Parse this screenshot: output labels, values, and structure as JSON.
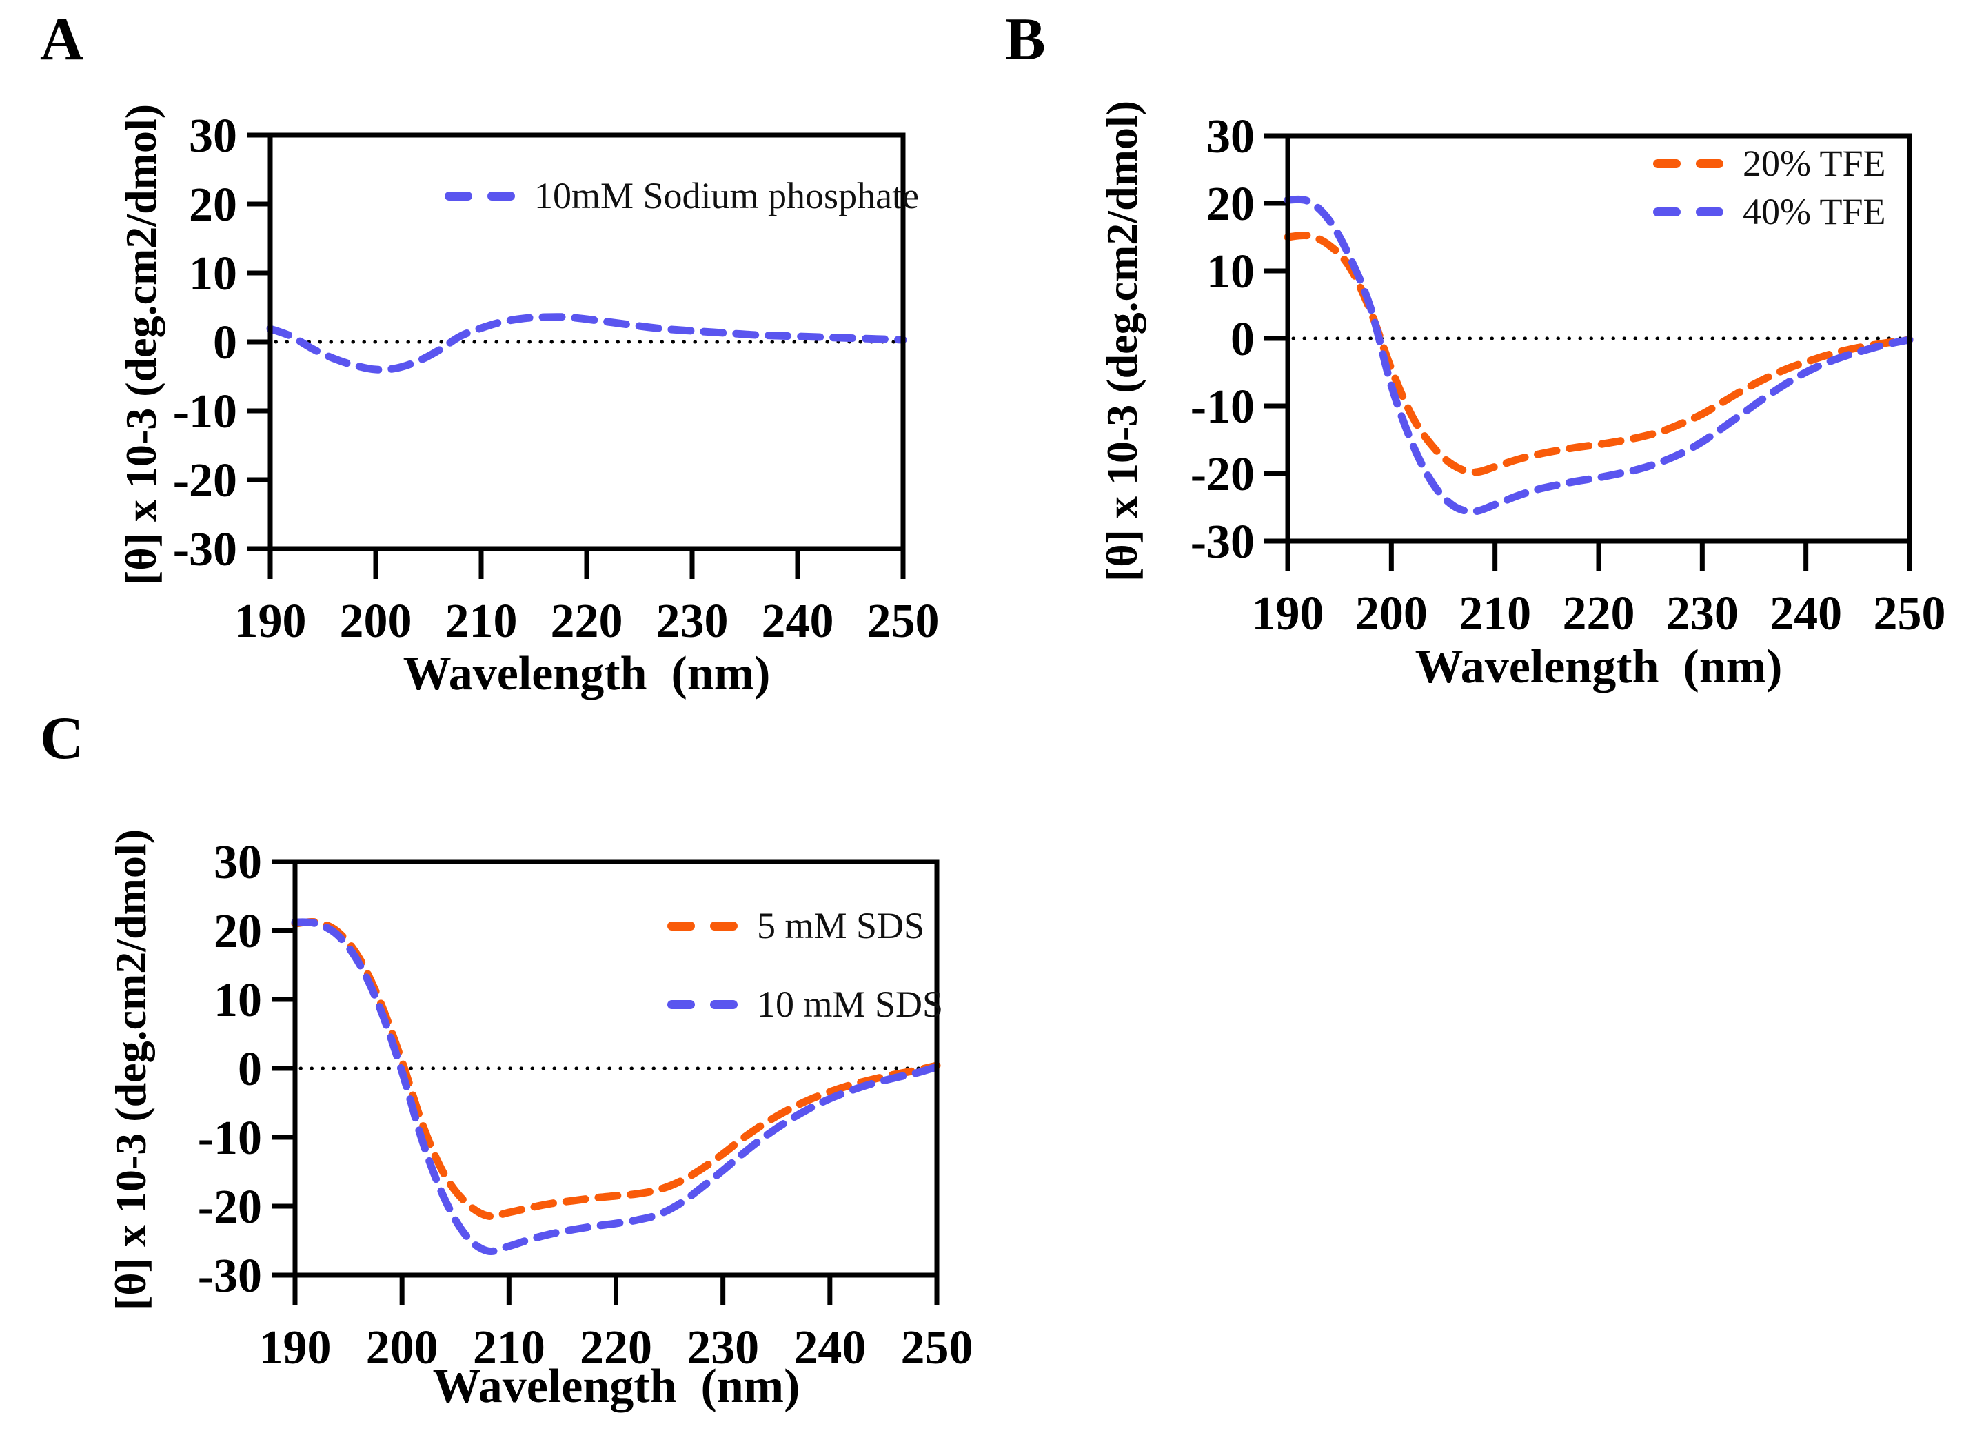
{
  "chart_data": [
    {
      "panel_label": "A",
      "type": "line",
      "xlabel": "Wavelength  (nm)",
      "ylabel": "[θ] x 10-3 (deg.cm2/dmol)",
      "xlim": [
        190,
        250
      ],
      "ylim": [
        -30,
        30
      ],
      "xticks": [
        190,
        200,
        210,
        220,
        230,
        240,
        250
      ],
      "yticks": [
        30,
        20,
        10,
        0,
        -10,
        -20,
        -30
      ],
      "zero_line": true,
      "grid": false,
      "legend_position": "top-right",
      "line_style": "dashed",
      "x": [
        190,
        192,
        194,
        196,
        198,
        200,
        202,
        204,
        206,
        208,
        210,
        212,
        214,
        216,
        218,
        220,
        222,
        224,
        226,
        228,
        230,
        232,
        234,
        236,
        238,
        240,
        242,
        244,
        246,
        248,
        250
      ],
      "series": [
        {
          "name": "10mM Sodium phosphate",
          "color": "#5a55ef",
          "values": [
            1.9,
            0.8,
            -1.0,
            -2.4,
            -3.4,
            -4.0,
            -3.8,
            -2.8,
            -1.2,
            0.8,
            2.0,
            2.9,
            3.4,
            3.6,
            3.6,
            3.3,
            2.9,
            2.5,
            2.1,
            1.8,
            1.6,
            1.4,
            1.2,
            1.0,
            0.9,
            0.8,
            0.7,
            0.6,
            0.5,
            0.4,
            0.3
          ]
        }
      ]
    },
    {
      "panel_label": "B",
      "type": "line",
      "xlabel": "Wavelength  (nm)",
      "ylabel": "[θ] x 10-3 (deg.cm2/dmol)",
      "xlim": [
        190,
        250
      ],
      "ylim": [
        -30,
        30
      ],
      "xticks": [
        190,
        200,
        210,
        220,
        230,
        240,
        250
      ],
      "yticks": [
        30,
        20,
        10,
        0,
        -10,
        -20,
        -30
      ],
      "zero_line": true,
      "grid": false,
      "legend_position": "top-right",
      "line_style": "dashed",
      "x": [
        190,
        192,
        194,
        196,
        198,
        200,
        202,
        204,
        206,
        208,
        210,
        212,
        214,
        216,
        218,
        220,
        222,
        224,
        226,
        228,
        230,
        232,
        234,
        236,
        238,
        240,
        242,
        244,
        246,
        248,
        250
      ],
      "series": [
        {
          "name": "20% TFE",
          "color": "#f95b09",
          "values": [
            15.0,
            15.2,
            13.8,
            10.5,
            4.0,
            -4.5,
            -11.5,
            -16.0,
            -18.8,
            -19.8,
            -19.0,
            -18.0,
            -17.2,
            -16.6,
            -16.1,
            -15.7,
            -15.2,
            -14.6,
            -13.8,
            -12.6,
            -11.2,
            -9.4,
            -7.6,
            -6.0,
            -4.6,
            -3.5,
            -2.5,
            -1.7,
            -1.1,
            -0.6,
            -0.2
          ]
        },
        {
          "name": "40% TFE",
          "color": "#5a55ef",
          "values": [
            20.5,
            20.3,
            17.5,
            12.0,
            4.5,
            -7.0,
            -15.5,
            -21.5,
            -24.8,
            -25.6,
            -24.6,
            -23.4,
            -22.4,
            -21.7,
            -21.1,
            -20.6,
            -20.0,
            -19.3,
            -18.3,
            -17.0,
            -15.3,
            -13.2,
            -11.0,
            -8.8,
            -6.8,
            -5.0,
            -3.6,
            -2.5,
            -1.6,
            -0.8,
            -0.2
          ]
        }
      ]
    },
    {
      "panel_label": "C",
      "type": "line",
      "xlabel": "Wavelength  (nm)",
      "ylabel": "[θ] x 10-3 (deg.cm2/dmol)",
      "xlim": [
        190,
        250
      ],
      "ylim": [
        -30,
        30
      ],
      "xticks": [
        190,
        200,
        210,
        220,
        230,
        240,
        250
      ],
      "yticks": [
        30,
        20,
        10,
        0,
        -10,
        -20,
        -30
      ],
      "zero_line": true,
      "grid": false,
      "legend_position": "top-right",
      "line_style": "dashed",
      "x": [
        190,
        192,
        194,
        196,
        198,
        200,
        202,
        204,
        206,
        208,
        210,
        212,
        214,
        216,
        218,
        220,
        222,
        224,
        226,
        228,
        230,
        232,
        234,
        236,
        238,
        240,
        242,
        244,
        246,
        248,
        250
      ],
      "series": [
        {
          "name": "5 mM SDS",
          "color": "#f95b09",
          "values": [
            21.0,
            21.2,
            19.8,
            16.0,
            9.5,
            1.0,
            -8.5,
            -15.5,
            -19.5,
            -21.4,
            -20.9,
            -20.2,
            -19.6,
            -19.2,
            -18.8,
            -18.5,
            -18.2,
            -17.6,
            -16.4,
            -14.6,
            -12.4,
            -10.0,
            -7.9,
            -6.1,
            -4.6,
            -3.4,
            -2.4,
            -1.6,
            -0.9,
            -0.3,
            0.4
          ]
        },
        {
          "name": "10 mM SDS",
          "color": "#5a55ef",
          "values": [
            21.2,
            21.0,
            19.3,
            15.2,
            8.5,
            -0.5,
            -11.0,
            -19.0,
            -24.3,
            -26.5,
            -25.8,
            -24.8,
            -24.0,
            -23.4,
            -22.9,
            -22.5,
            -22.0,
            -21.2,
            -19.6,
            -17.3,
            -14.8,
            -12.2,
            -9.8,
            -7.7,
            -5.9,
            -4.4,
            -3.2,
            -2.2,
            -1.4,
            -0.7,
            0.2
          ]
        }
      ]
    }
  ]
}
